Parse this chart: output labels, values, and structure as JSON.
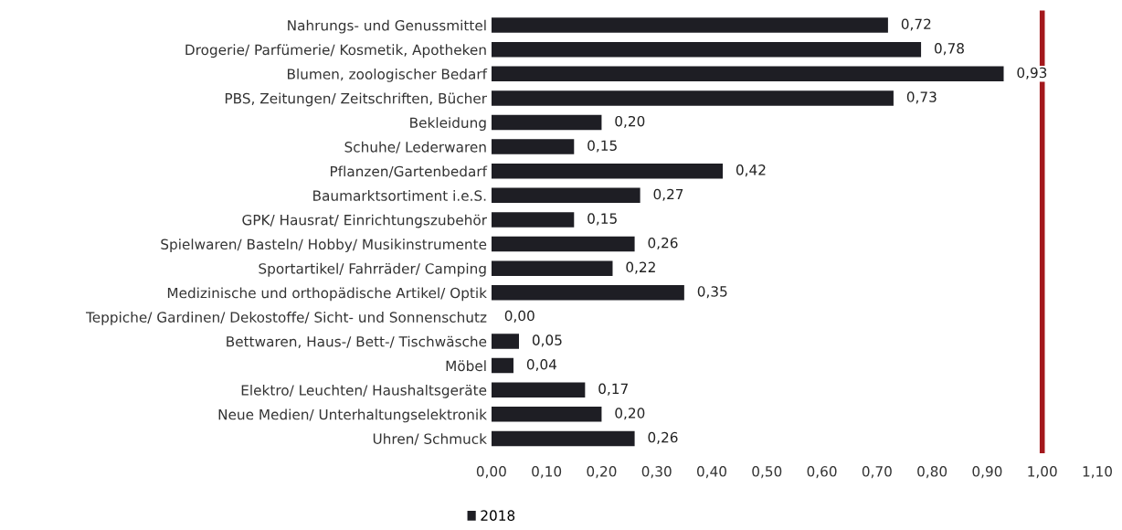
{
  "chart_data": {
    "type": "bar",
    "orientation": "horizontal",
    "categories": [
      "Nahrungs- und Genussmittel",
      "Drogerie/ Parfümerie/ Kosmetik, Apotheken",
      "Blumen, zoologischer Bedarf",
      "PBS, Zeitungen/ Zeitschriften, Bücher",
      "Bekleidung",
      "Schuhe/ Lederwaren",
      "Pflanzen/Gartenbedarf",
      "Baumarktsortiment i.e.S.",
      "GPK/ Hausrat/ Einrichtungszubehör",
      "Spielwaren/ Basteln/ Hobby/ Musikinstrumente",
      "Sportartikel/ Fahrräder/ Camping",
      "Medizinische und orthopädische Artikel/ Optik",
      "Teppiche/ Gardinen/ Dekostoffe/ Sicht- und Sonnenschutz",
      "Bettwaren, Haus-/ Bett-/ Tischwäsche",
      "Möbel",
      "Elektro/ Leuchten/ Haushaltsgeräte",
      "Neue Medien/ Unterhaltungselektronik",
      "Uhren/ Schmuck"
    ],
    "series": [
      {
        "name": "2018",
        "color": "#1e1e24",
        "values": [
          0.72,
          0.78,
          0.93,
          0.73,
          0.2,
          0.15,
          0.42,
          0.27,
          0.15,
          0.26,
          0.22,
          0.35,
          0.0,
          0.05,
          0.04,
          0.17,
          0.2,
          0.26
        ],
        "value_labels": [
          "0,72",
          "0,78",
          "0,93",
          "0,73",
          "0,20",
          "0,15",
          "0,42",
          "0,27",
          "0,15",
          "0,26",
          "0,22",
          "0,35",
          "0,00",
          "0,05",
          "0,04",
          "0,17",
          "0,20",
          "0,26"
        ]
      }
    ],
    "xlim": [
      0,
      1.1
    ],
    "xticks": [
      {
        "value": 0,
        "label": "0,00"
      },
      {
        "value": 0.1,
        "label": "0,10"
      },
      {
        "value": 0.2,
        "label": "0,20"
      },
      {
        "value": 0.3,
        "label": "0,30"
      },
      {
        "value": 0.4,
        "label": "0,40"
      },
      {
        "value": 0.5,
        "label": "0,50"
      },
      {
        "value": 0.6,
        "label": "0,60"
      },
      {
        "value": 0.7,
        "label": "0,70"
      },
      {
        "value": 0.8,
        "label": "0,80"
      },
      {
        "value": 0.9,
        "label": "0,90"
      },
      {
        "value": 1.0,
        "label": "1,00"
      },
      {
        "value": 1.1,
        "label": "1,10"
      }
    ],
    "ref_lines": [
      {
        "axis": "x",
        "value": 1.0,
        "color": "#a3181c"
      }
    ],
    "grid": false,
    "legend": "bottom"
  }
}
